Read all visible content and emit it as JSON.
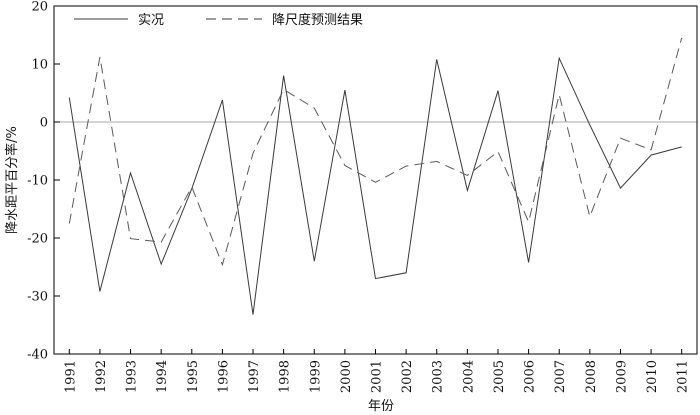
{
  "chart_data": {
    "type": "line",
    "title": "",
    "xlabel": "年份",
    "ylabel": "降水距平百分率/%",
    "ylim": [
      -40,
      20
    ],
    "yticks": [
      20,
      10,
      0,
      -10,
      -20,
      -30,
      -40
    ],
    "categories": [
      "1991",
      "1992",
      "1993",
      "1994",
      "1995",
      "1996",
      "1997",
      "1998",
      "1999",
      "2000",
      "2001",
      "2002",
      "2003",
      "2004",
      "2005",
      "2006",
      "2007",
      "2008",
      "2009",
      "2010",
      "2011"
    ],
    "reference_line": 0,
    "legend_position": "top-left",
    "series": [
      {
        "name": "实况",
        "style": "solid",
        "values": [
          4.2,
          -29.2,
          -8.8,
          -24.5,
          -11.5,
          3.8,
          -33.2,
          8.0,
          -24.0,
          5.5,
          -27.0,
          -26.0,
          10.8,
          -11.8,
          5.4,
          -24.2,
          11.0,
          -0.5,
          -11.4,
          -5.7,
          -4.3
        ]
      },
      {
        "name": "降尺度预测结果",
        "style": "dashed",
        "values": [
          -17.5,
          11.2,
          -20.1,
          -20.7,
          -11.2,
          -24.6,
          -5.4,
          5.6,
          2.4,
          -7.5,
          -10.4,
          -7.6,
          -6.8,
          -9.2,
          -5.1,
          -17.2,
          4.7,
          -16.3,
          -2.8,
          -4.8,
          14.5
        ]
      }
    ]
  }
}
